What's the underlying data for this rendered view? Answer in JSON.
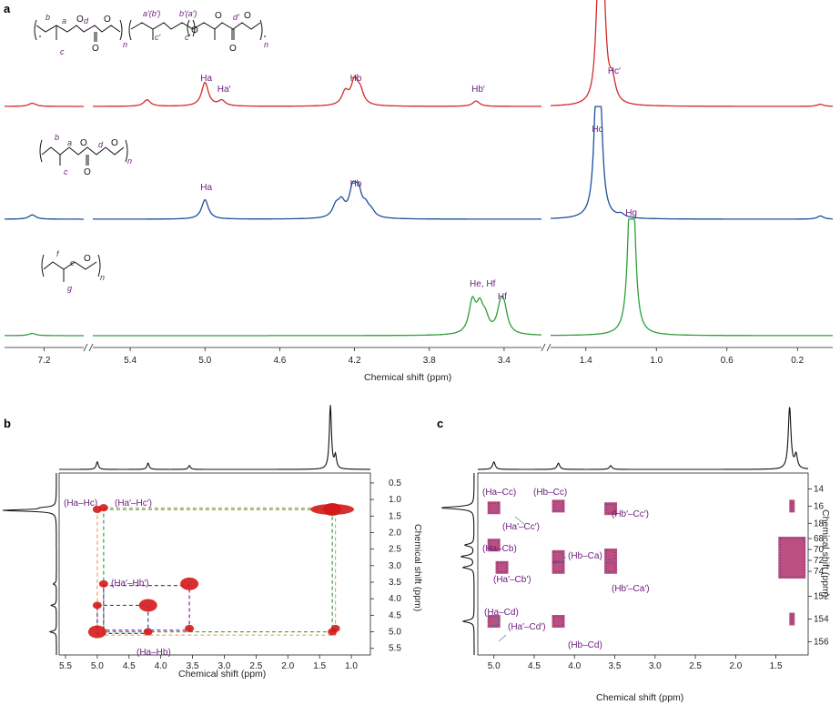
{
  "chart_data": [
    {
      "panel": "a",
      "type": "line",
      "xlabel": "Chemical shift (ppm)",
      "x_ticks": [
        "7.2",
        "5.4",
        "5.0",
        "4.6",
        "4.2",
        "3.8",
        "3.4",
        "1.4",
        "1.0",
        "0.6",
        "0.2"
      ],
      "axis_segments": [
        {
          "name": "left",
          "xlim": [
            7.4,
            7.0
          ]
        },
        {
          "name": "middle",
          "xlim": [
            5.6,
            3.2
          ]
        },
        {
          "name": "right",
          "xlim": [
            1.6,
            0.0
          ]
        }
      ],
      "colors": {
        "top": "#d42a2a",
        "middle": "#1d4f9a",
        "bottom": "#2e9e3a"
      },
      "series": [
        {
          "id": "top",
          "peaks": [
            {
              "x": 7.26,
              "y": 0.03
            },
            {
              "x": 5.31,
              "y": 0.06
            },
            {
              "x": 5.0,
              "y": 0.22
            },
            {
              "x": 4.91,
              "y": 0.05
            },
            {
              "x": 4.25,
              "y": 0.12
            },
            {
              "x": 4.2,
              "y": 0.22
            },
            {
              "x": 4.17,
              "y": 0.12
            },
            {
              "x": 3.55,
              "y": 0.05
            },
            {
              "x": 1.33,
              "y": 1.0
            },
            {
              "x": 1.3,
              "y": 0.95
            },
            {
              "x": 1.25,
              "y": 0.2
            },
            {
              "x": 0.07,
              "y": 0.02
            }
          ]
        },
        {
          "id": "middle",
          "peaks": [
            {
              "x": 7.26,
              "y": 0.04
            },
            {
              "x": 5.0,
              "y": 0.18
            },
            {
              "x": 4.3,
              "y": 0.1
            },
            {
              "x": 4.27,
              "y": 0.13
            },
            {
              "x": 4.21,
              "y": 0.24
            },
            {
              "x": 4.18,
              "y": 0.22
            },
            {
              "x": 4.14,
              "y": 0.09
            },
            {
              "x": 4.11,
              "y": 0.05
            },
            {
              "x": 1.34,
              "y": 1.0
            },
            {
              "x": 1.32,
              "y": 0.95
            },
            {
              "x": 1.2,
              "y": 0.03
            },
            {
              "x": 0.07,
              "y": 0.03
            }
          ]
        },
        {
          "id": "bottom",
          "peaks": [
            {
              "x": 7.26,
              "y": 0.02
            },
            {
              "x": 3.57,
              "y": 0.28
            },
            {
              "x": 3.53,
              "y": 0.22
            },
            {
              "x": 3.5,
              "y": 0.12
            },
            {
              "x": 3.42,
              "y": 0.2
            },
            {
              "x": 3.4,
              "y": 0.2
            },
            {
              "x": 1.15,
              "y": 1.0
            },
            {
              "x": 1.13,
              "y": 0.9
            }
          ]
        }
      ],
      "peak_labels": [
        {
          "series": "top",
          "x": 5.0,
          "text": "Ha"
        },
        {
          "series": "top",
          "x": 4.91,
          "text": "Ha′"
        },
        {
          "series": "top",
          "x": 4.2,
          "text": "Hb"
        },
        {
          "series": "top",
          "x": 3.55,
          "text": "Hb′"
        },
        {
          "series": "top",
          "x": 1.33,
          "text": "Hc"
        },
        {
          "series": "top",
          "x": 1.25,
          "text": "Hc′"
        },
        {
          "series": "middle",
          "x": 5.0,
          "text": "Ha"
        },
        {
          "series": "middle",
          "x": 4.2,
          "text": "Hb"
        },
        {
          "series": "middle",
          "x": 1.34,
          "text": "Hc"
        },
        {
          "series": "bottom",
          "x": 3.56,
          "text": "He, Hf"
        },
        {
          "series": "bottom",
          "x": 3.41,
          "text": "Hf"
        },
        {
          "series": "bottom",
          "x": 1.15,
          "text": "Hg"
        }
      ],
      "structure_labels": {
        "top": [
          "b",
          "a",
          "d",
          "c",
          "n",
          "a′(b′)",
          "b′(a′)",
          "c′",
          "c′",
          "d′",
          "n"
        ],
        "middle": [
          "b",
          "a",
          "d",
          "c",
          "n"
        ],
        "bottom": [
          "f",
          "e",
          "g",
          "n"
        ]
      }
    },
    {
      "panel": "b",
      "type": "heatmap",
      "xlabel": "Chemical shift (ppm)",
      "ylabel": "Chemical shift (ppm)",
      "xlim": [
        5.6,
        0.7
      ],
      "ylim": [
        0.2,
        5.7
      ],
      "x_ticks": [
        "5.5",
        "5.0",
        "4.5",
        "4.0",
        "3.5",
        "3.0",
        "2.5",
        "2.0",
        "1.5",
        "1.0"
      ],
      "y_ticks": [
        "0.5",
        "1.0",
        "1.5",
        "2.0",
        "2.5",
        "3.0",
        "3.5",
        "4.0",
        "4.5",
        "5.0",
        "5.5"
      ],
      "cross_peaks": [
        {
          "x": 5.0,
          "y": 5.0
        },
        {
          "x": 4.2,
          "y": 4.2
        },
        {
          "x": 3.55,
          "y": 3.55
        },
        {
          "x": 1.3,
          "y": 1.3
        },
        {
          "x": 5.0,
          "y": 1.3
        },
        {
          "x": 1.3,
          "y": 5.0
        },
        {
          "x": 4.2,
          "y": 5.0
        },
        {
          "x": 5.0,
          "y": 4.2
        },
        {
          "x": 4.9,
          "y": 3.55
        },
        {
          "x": 3.55,
          "y": 4.9
        },
        {
          "x": 4.9,
          "y": 1.25
        },
        {
          "x": 1.25,
          "y": 4.9
        }
      ],
      "annotations": [
        "(Ha–Hc)",
        "(Ha′–Hc′)",
        "(Ha′–Hb′)",
        "(Ha–Hb)"
      ],
      "colors": {
        "peaks": "#d41a1a",
        "green": "#3aa04a",
        "orange": "#f0a060",
        "purple": "#7a2a9a",
        "blue": "#2a4aa0"
      }
    },
    {
      "panel": "c",
      "type": "heatmap",
      "xlabel": "Chemical shift (ppm)",
      "ylabel": "Chemical shift (ppm)",
      "xlim": [
        5.2,
        1.1
      ],
      "x_ticks": [
        "5.0",
        "4.5",
        "4.0",
        "3.5",
        "3.0",
        "2.5",
        "2.0",
        "1.5"
      ],
      "y_ticks": [
        "14",
        "16",
        "18",
        "68",
        "70",
        "72",
        "74",
        "152",
        "154",
        "156"
      ],
      "y_blocks": [
        {
          "ylim": [
            13,
            18.5
          ]
        },
        {
          "ylim": [
            67,
            75.5
          ]
        },
        {
          "ylim": [
            151,
            157
          ]
        }
      ],
      "cross_peaks": [
        {
          "x": 5.0,
          "y": 16.2,
          "block": 0
        },
        {
          "x": 4.2,
          "y": 16.0,
          "block": 0
        },
        {
          "x": 3.55,
          "y": 16.3,
          "block": 0
        },
        {
          "x": 1.3,
          "y": 16.0,
          "block": 0
        },
        {
          "x": 5.0,
          "y": 69.2,
          "block": 1
        },
        {
          "x": 4.9,
          "y": 73.3,
          "block": 1
        },
        {
          "x": 4.2,
          "y": 71.3,
          "block": 1
        },
        {
          "x": 4.2,
          "y": 73.3,
          "block": 1
        },
        {
          "x": 3.55,
          "y": 71.0,
          "block": 1
        },
        {
          "x": 3.55,
          "y": 73.3,
          "block": 1
        },
        {
          "x": 1.3,
          "y": 71.5,
          "block": 1
        },
        {
          "x": 5.0,
          "y": 154.2,
          "block": 2
        },
        {
          "x": 4.2,
          "y": 154.2,
          "block": 2
        },
        {
          "x": 1.3,
          "y": 154.0,
          "block": 2
        }
      ],
      "annotations": [
        "(Ha–Cc)",
        "(Hb–Cc)",
        "(Ha′–Cc′)",
        "(Hb′–Cc′)",
        "(Ha–Cb)",
        "(Hb–Ca)",
        "(Ha′–Cb′)",
        "(Hb′–Ca′)",
        "(Ha–Cd)",
        "(Ha′–Cd′)",
        "(Hb–Cd)"
      ],
      "colors": {
        "peaks": "#b0306a",
        "blue": "#2a3a8a"
      }
    }
  ],
  "panel_labels": [
    "a",
    "b",
    "c"
  ]
}
